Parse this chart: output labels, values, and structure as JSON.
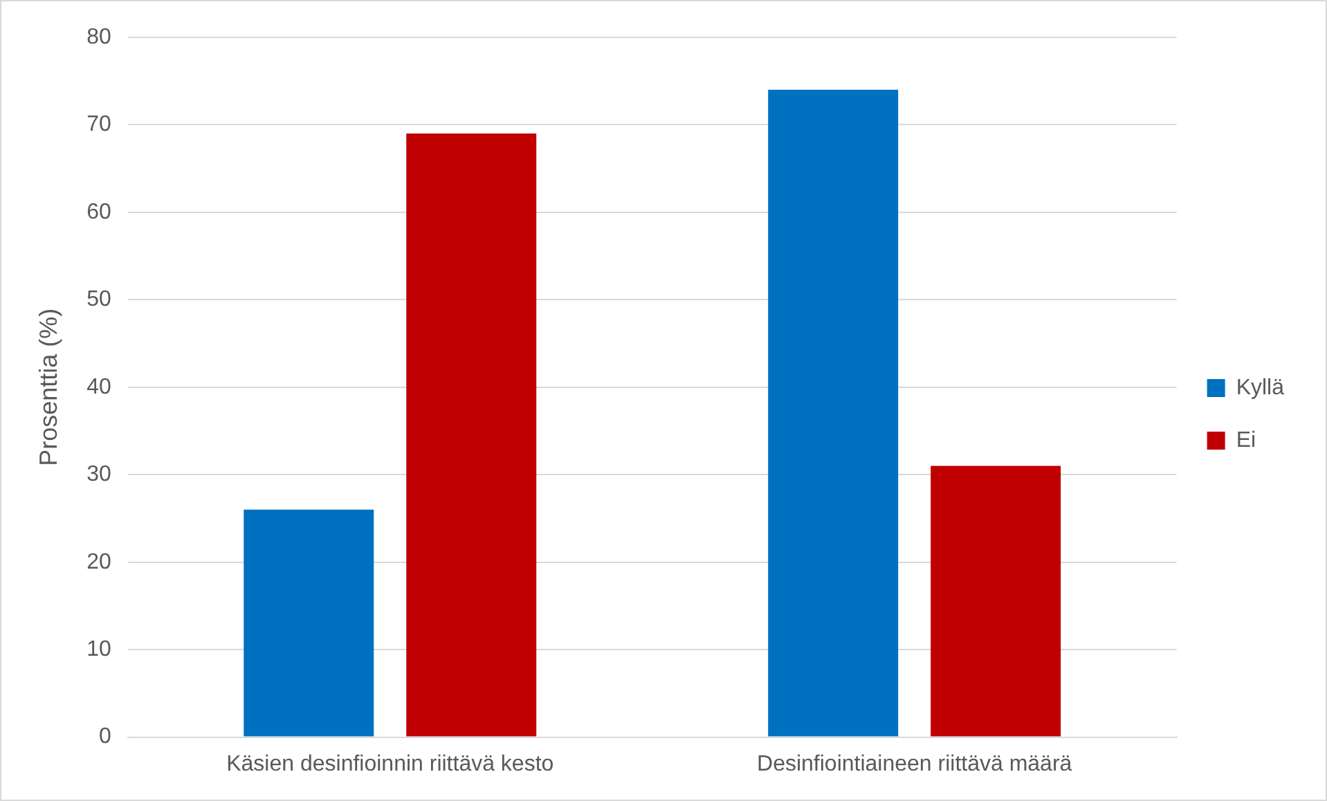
{
  "chart_data": {
    "type": "bar",
    "ylabel": "Prosenttia (%)",
    "categories": [
      "Käsien desinfioinnin riittävä kesto",
      "Desinfiointiaineen riittävä määrä"
    ],
    "series": [
      {
        "name": "Kyllä",
        "color": "#0070c0",
        "values": [
          26,
          74
        ]
      },
      {
        "name": "Ei",
        "color": "#c00000",
        "values": [
          69,
          31
        ]
      }
    ],
    "ylim": [
      0,
      80
    ],
    "yticks": [
      0,
      10,
      20,
      30,
      40,
      50,
      60,
      70,
      80
    ],
    "grid": "y",
    "legend": "right"
  }
}
